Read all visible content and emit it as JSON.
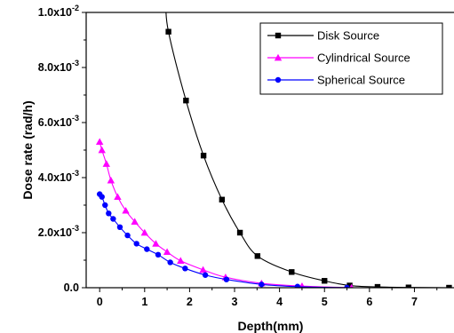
{
  "chart_data": {
    "type": "line",
    "xlabel": "Depth(mm)",
    "ylabel": "Dose rate (rad/h)",
    "xlim": [
      -0.3,
      7.9
    ],
    "ylim": [
      0,
      0.01
    ],
    "xticks": [
      0,
      1,
      2,
      3,
      4,
      5,
      6,
      7
    ],
    "xtick_labels": [
      "0",
      "1",
      "2",
      "3",
      "4",
      "5",
      "6",
      "7"
    ],
    "yticks": [
      0,
      0.002,
      0.004,
      0.006,
      0.008,
      0.01
    ],
    "ytick_labels": [
      {
        "base": "0.0",
        "exp": ""
      },
      {
        "base": "2.0x10",
        "exp": "-3"
      },
      {
        "base": "4.0x10",
        "exp": "-3"
      },
      {
        "base": "6.0x10",
        "exp": "-3"
      },
      {
        "base": "8.0x10",
        "exp": "-3"
      },
      {
        "base": "1.0x10",
        "exp": "-2"
      }
    ],
    "legend_position": "top-right",
    "series": [
      {
        "name": "Disk Source",
        "color": "#000000",
        "marker": "square",
        "x": [
          1.53,
          1.92,
          2.31,
          2.72,
          3.12,
          3.51,
          4.27,
          5.0,
          5.56,
          6.18,
          6.87,
          7.77
        ],
        "y": [
          0.0093,
          0.0068,
          0.0048,
          0.0032,
          0.002,
          0.00115,
          0.00057,
          0.00025,
          8e-05,
          3e-05,
          1e-05,
          0.0
        ]
      },
      {
        "name": "Cylindrical Source",
        "color": "#ff00ff",
        "marker": "triangle",
        "x": [
          0.0,
          0.05,
          0.15,
          0.25,
          0.4,
          0.58,
          0.78,
          1.0,
          1.25,
          1.5,
          1.8,
          2.3,
          2.8,
          3.6,
          4.5,
          5.6
        ],
        "y": [
          0.0053,
          0.005,
          0.0045,
          0.0039,
          0.0033,
          0.0028,
          0.0024,
          0.002,
          0.0016,
          0.0013,
          0.00098,
          0.00065,
          0.00038,
          0.00016,
          6e-05,
          0.0
        ]
      },
      {
        "name": "Spherical Source",
        "color": "#0000ff",
        "marker": "circle",
        "x": [
          0.0,
          0.05,
          0.12,
          0.2,
          0.3,
          0.45,
          0.62,
          0.82,
          1.05,
          1.3,
          1.57,
          1.9,
          2.35,
          2.82,
          3.6,
          4.4,
          5.5
        ],
        "y": [
          0.0034,
          0.0033,
          0.003,
          0.0027,
          0.0025,
          0.0022,
          0.0019,
          0.0016,
          0.0014,
          0.0012,
          0.00092,
          0.0007,
          0.00046,
          0.0003,
          0.00012,
          4e-05,
          0.0
        ]
      }
    ]
  }
}
